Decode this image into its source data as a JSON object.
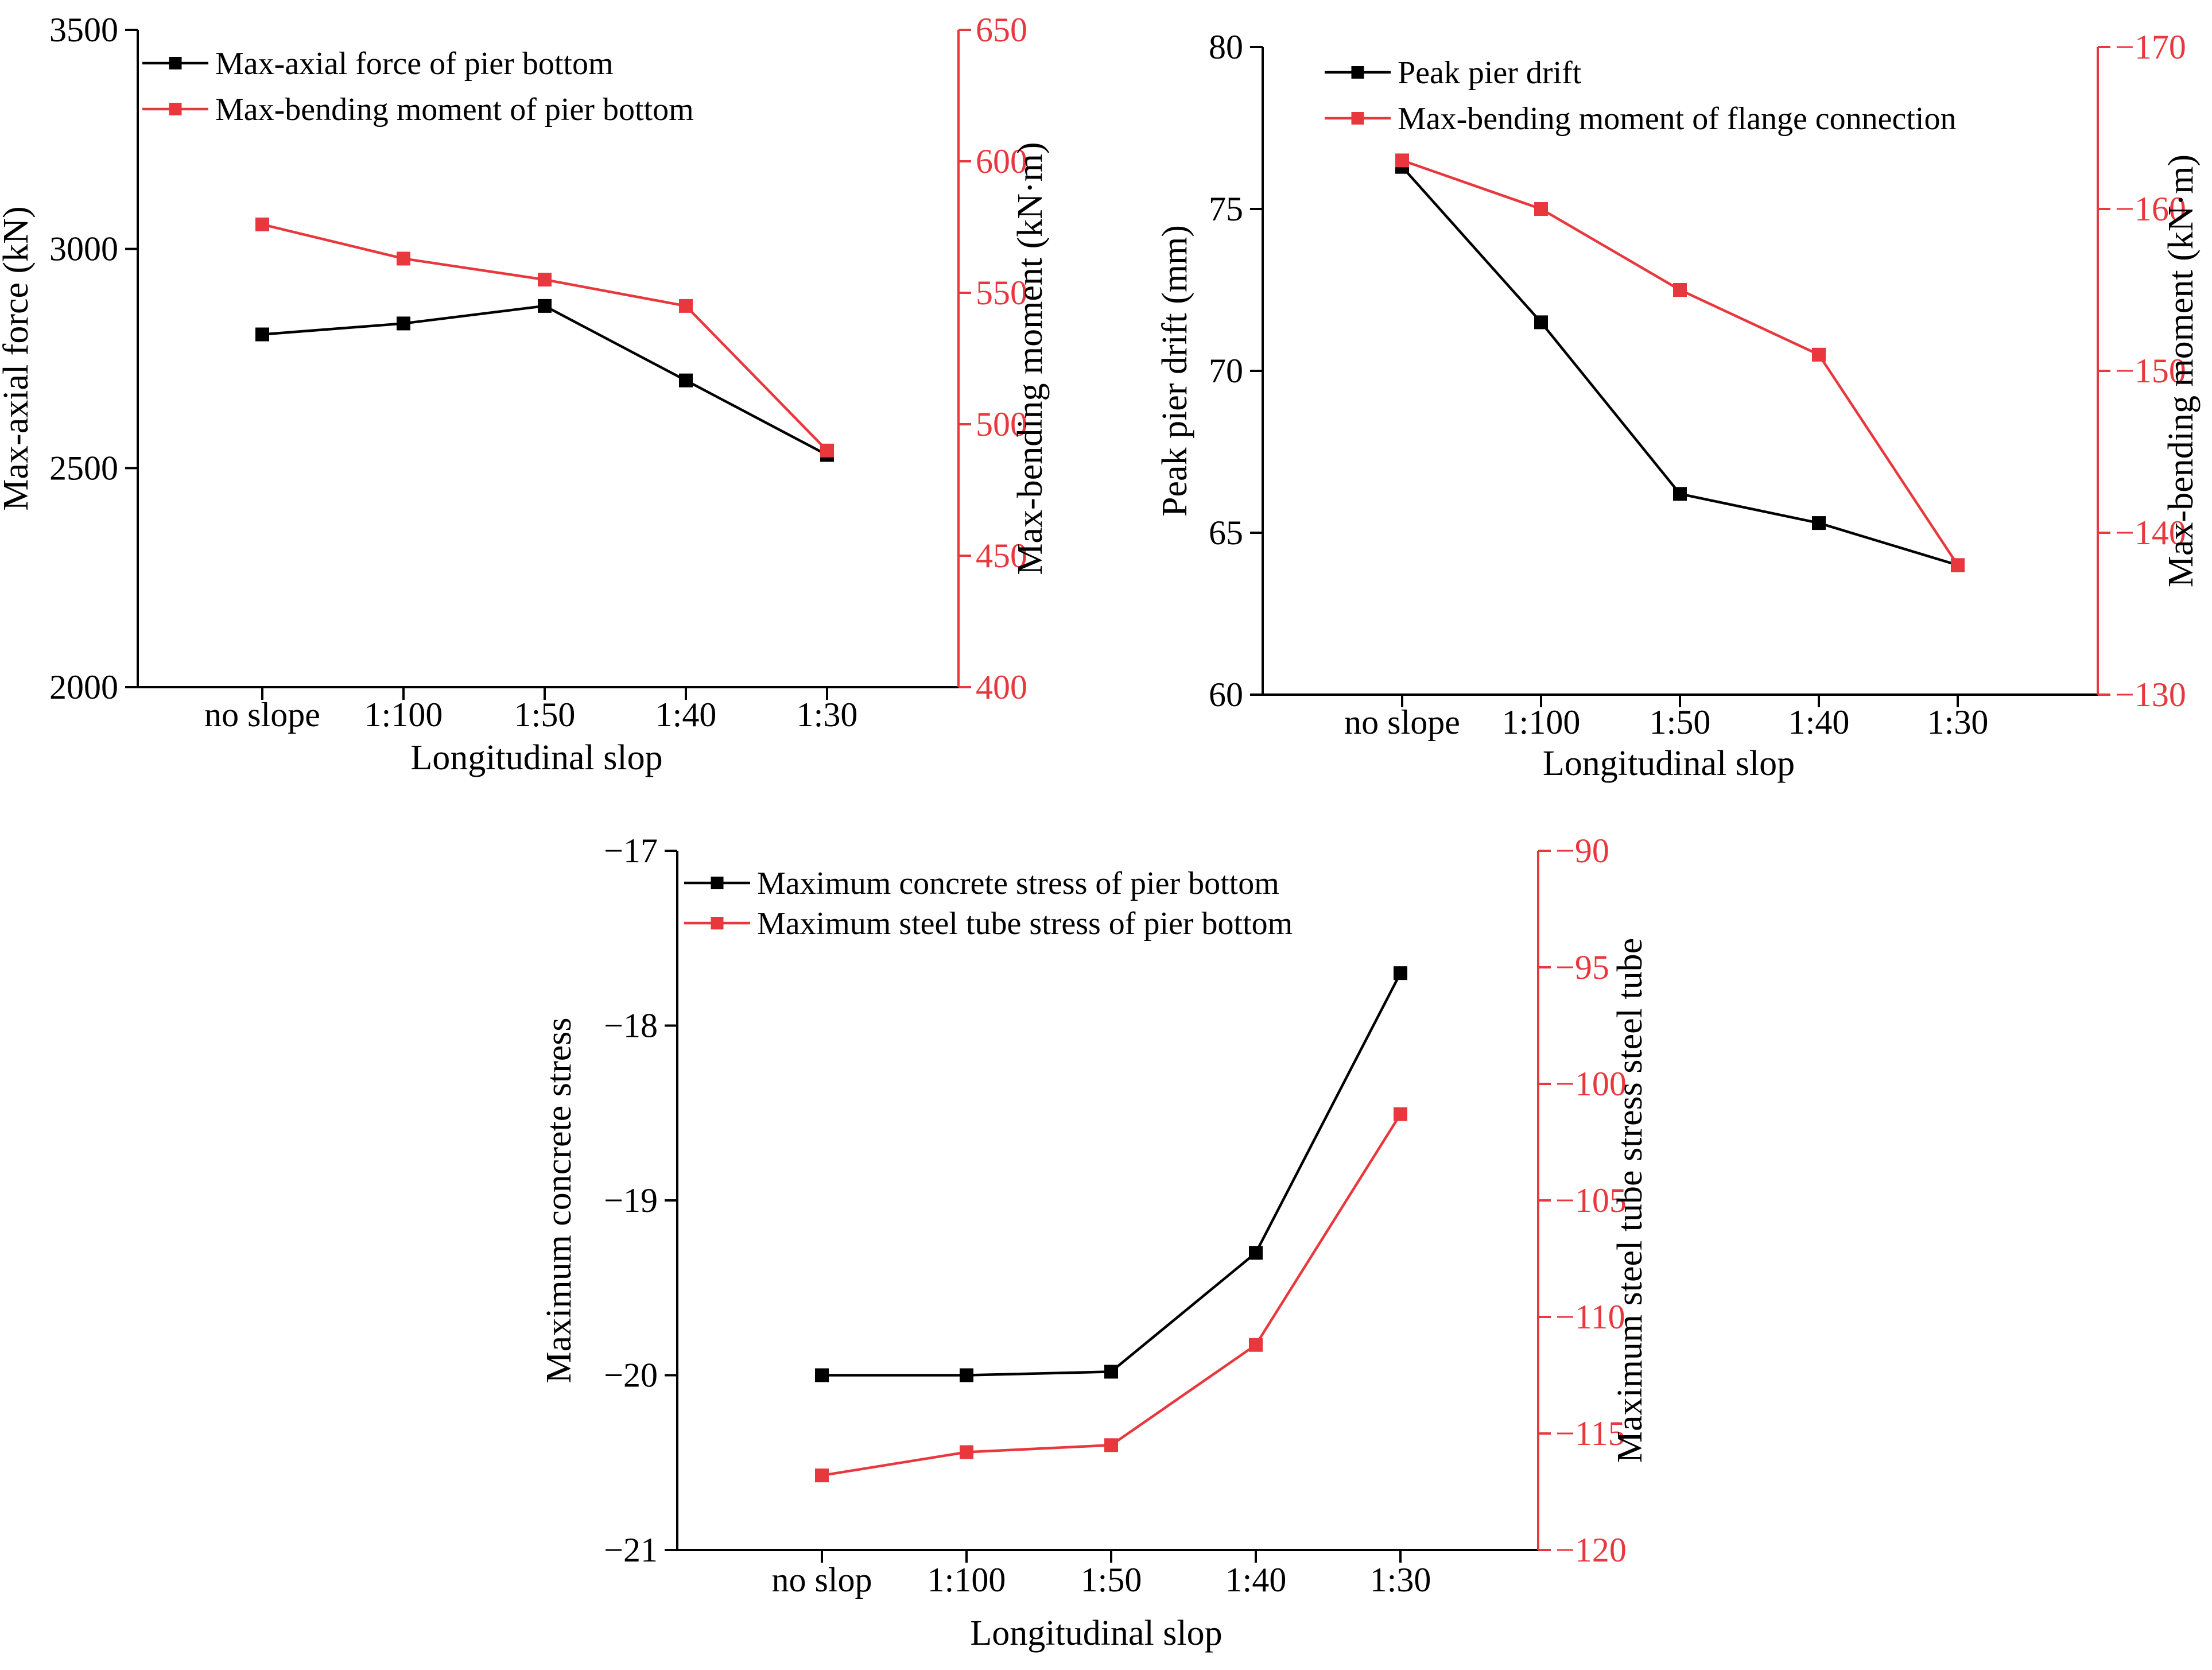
{
  "colors": {
    "series1": "#000000",
    "series2": "#e8383d",
    "axis_left": "#000000",
    "axis_right": "#e8383d"
  },
  "chart_data": [
    {
      "type": "line",
      "categories": [
        "no slope",
        "1:100",
        "1:50",
        "1:40",
        "1:30"
      ],
      "xlabel": "Longitudinal slop",
      "ylabel_left": "Max-axial force (kN)",
      "ylabel_right": "Max-bending moment (kN·m)",
      "ylim_left": [
        2000,
        3500
      ],
      "ylim_right": [
        400,
        650
      ],
      "yticks_left": [
        "2000",
        "2500",
        "3000",
        "3500"
      ],
      "yticks_right": [
        "400",
        "450",
        "500",
        "550",
        "600",
        "650"
      ],
      "legend_position": "top-left",
      "series": [
        {
          "name": "Max-axial force of pier bottom",
          "axis": "left",
          "values": [
            2805,
            2830,
            2870,
            2700,
            2530
          ]
        },
        {
          "name": "Max-bending moment of pier bottom",
          "axis": "right",
          "values": [
            576,
            563,
            555,
            545,
            490
          ]
        }
      ]
    },
    {
      "type": "line",
      "categories": [
        "no slope",
        "1:100",
        "1:50",
        "1:40",
        "1:30"
      ],
      "xlabel": "Longitudinal slop",
      "ylabel_left": "Peak pier drift (mm)",
      "ylabel_right": "Max-bending moment (kN·m)",
      "ylim_left": [
        60,
        80
      ],
      "ylim_right": [
        -130,
        -170
      ],
      "yticks_left": [
        "60",
        "65",
        "70",
        "75",
        "80"
      ],
      "yticks_right": [
        "−130",
        "−140",
        "−150",
        "−160",
        "−170"
      ],
      "legend_position": "top-left",
      "series": [
        {
          "name": "Peak pier drift",
          "axis": "left",
          "values": [
            76.3,
            71.5,
            66.2,
            65.3,
            64.0
          ]
        },
        {
          "name": "Max-bending moment of flange connection",
          "axis": "right",
          "values": [
            -163,
            -160,
            -155,
            -151,
            -138
          ]
        }
      ]
    },
    {
      "type": "line",
      "categories": [
        "no slop",
        "1:100",
        "1:50",
        "1:40",
        "1:30"
      ],
      "xlabel": "Longitudinal slop",
      "ylabel_left": "Maximum concrete stress",
      "ylabel_right": "Maximum steel tube stress steel tube",
      "ylim_left": [
        -21,
        -17
      ],
      "ylim_right": [
        -120,
        -90
      ],
      "yticks_left": [
        "−21",
        "−20",
        "−19",
        "−18",
        "−17"
      ],
      "yticks_right": [
        "−120",
        "−115",
        "−110",
        "−105",
        "−100",
        "−95",
        "−90"
      ],
      "legend_position": "top-left",
      "series": [
        {
          "name": "Maximum concrete stress of pier bottom",
          "axis": "left",
          "values": [
            -20.0,
            -20.0,
            -19.98,
            -19.3,
            -17.7
          ]
        },
        {
          "name": "Maximum steel tube stress of pier bottom",
          "axis": "right",
          "values": [
            -116.8,
            -115.8,
            -115.5,
            -111.2,
            -101.3
          ]
        }
      ]
    }
  ]
}
